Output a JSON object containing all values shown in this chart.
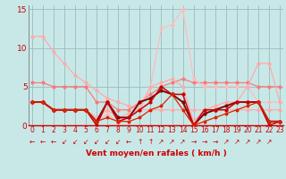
{
  "background_color": "#c8e8e8",
  "grid_color": "#99bbbb",
  "text_color": "#cc0000",
  "xlabel": "Vent moyen/en rafales ( km/h )",
  "xlim": [
    -0.3,
    23.3
  ],
  "ylim": [
    0,
    15.5
  ],
  "yticks": [
    0,
    5,
    10,
    15
  ],
  "xticks": [
    0,
    1,
    2,
    3,
    4,
    5,
    6,
    7,
    8,
    9,
    10,
    11,
    12,
    13,
    14,
    15,
    16,
    17,
    18,
    19,
    20,
    21,
    22,
    23
  ],
  "lines": [
    {
      "x": [
        0,
        1,
        2,
        3,
        4,
        5,
        6,
        7,
        8,
        9,
        10,
        11,
        12,
        13,
        14,
        15,
        16,
        17,
        18,
        19,
        20,
        21,
        22,
        23
      ],
      "y": [
        11.5,
        11.5,
        9.5,
        8,
        6.5,
        5.5,
        4.5,
        3.5,
        3,
        2.5,
        2,
        2,
        2,
        2,
        2,
        2,
        2,
        2,
        2,
        2,
        2,
        2,
        2,
        2
      ],
      "color": "#ffaaaa",
      "lw": 0.9,
      "marker": "o",
      "ms": 2.0,
      "zorder": 2
    },
    {
      "x": [
        0,
        1,
        2,
        3,
        4,
        5,
        6,
        7,
        8,
        9,
        10,
        11,
        12,
        13,
        14,
        15,
        16,
        17,
        18,
        19,
        20,
        21,
        22,
        23
      ],
      "y": [
        5.5,
        5.5,
        5,
        5,
        5,
        5,
        3,
        3,
        2,
        2,
        3,
        4,
        5,
        5.5,
        6,
        5.5,
        5.5,
        5.5,
        5.5,
        5.5,
        5.5,
        5,
        5,
        5
      ],
      "color": "#ff7777",
      "lw": 0.9,
      "marker": "o",
      "ms": 2.0,
      "zorder": 2
    },
    {
      "x": [
        0,
        1,
        2,
        3,
        4,
        5,
        6,
        7,
        8,
        9,
        10,
        11,
        12,
        13,
        14,
        15,
        16,
        17,
        18,
        19,
        20,
        21,
        22,
        23
      ],
      "y": [
        3,
        3,
        2,
        2,
        2,
        2,
        0.5,
        1.5,
        0.3,
        1,
        2.5,
        5,
        12.5,
        13,
        15,
        6,
        5,
        5,
        5,
        5,
        5,
        3,
        3,
        3
      ],
      "color": "#ffbbbb",
      "lw": 0.9,
      "marker": "o",
      "ms": 2.0,
      "zorder": 2
    },
    {
      "x": [
        0,
        1,
        2,
        3,
        4,
        5,
        6,
        7,
        8,
        9,
        10,
        11,
        12,
        13,
        14,
        15,
        16,
        17,
        18,
        19,
        20,
        21,
        22,
        23
      ],
      "y": [
        3,
        3,
        2,
        2,
        2,
        2,
        0.5,
        3,
        1,
        1,
        3,
        3.5,
        4.5,
        4,
        3,
        0,
        1.5,
        2,
        2.5,
        3,
        3,
        3,
        0.5,
        0.5
      ],
      "color": "#880000",
      "lw": 1.4,
      "marker": "o",
      "ms": 2.0,
      "zorder": 3
    },
    {
      "x": [
        0,
        1,
        2,
        3,
        4,
        5,
        6,
        7,
        8,
        9,
        10,
        11,
        12,
        13,
        14,
        15,
        16,
        17,
        18,
        19,
        20,
        21,
        22,
        23
      ],
      "y": [
        3,
        3,
        2,
        2,
        2,
        2,
        0,
        3,
        0.5,
        1,
        2,
        3,
        5,
        4,
        4,
        0,
        2,
        2,
        2,
        3,
        3,
        3,
        0,
        0.5
      ],
      "color": "#cc0000",
      "lw": 1.1,
      "marker": "o",
      "ms": 2.0,
      "zorder": 3
    },
    {
      "x": [
        0,
        1,
        2,
        3,
        4,
        5,
        6,
        7,
        8,
        9,
        10,
        11,
        12,
        13,
        14,
        15,
        16,
        17,
        18,
        19,
        20,
        21,
        22,
        23
      ],
      "y": [
        3,
        3,
        2,
        2,
        2,
        2,
        0.5,
        1,
        0.5,
        0.5,
        1,
        2,
        2.5,
        4,
        2,
        0,
        0.5,
        1,
        1.5,
        2,
        2.5,
        3,
        0.5,
        0.5
      ],
      "color": "#dd2200",
      "lw": 0.9,
      "marker": "o",
      "ms": 1.8,
      "zorder": 3
    },
    {
      "x": [
        0,
        1,
        2,
        3,
        4,
        5,
        6,
        7,
        8,
        9,
        10,
        11,
        12,
        13,
        14,
        15,
        16,
        17,
        18,
        19,
        20,
        21,
        22,
        23
      ],
      "y": [
        3,
        3,
        2,
        2,
        2,
        2,
        1,
        2,
        1,
        1.5,
        2,
        5,
        5.5,
        6,
        5,
        0.5,
        2,
        2.5,
        3,
        3,
        5,
        8,
        8,
        3
      ],
      "color": "#ffaaaa",
      "lw": 0.9,
      "marker": "o",
      "ms": 2.0,
      "zorder": 2
    }
  ],
  "arrows": [
    "←",
    "←",
    "←",
    "↙",
    "↙",
    "↙",
    "↙",
    "↙",
    "↙",
    "←",
    "↑",
    "↑",
    "↗",
    "↗",
    "↗",
    "→",
    "→",
    "→",
    "↗",
    "↗",
    "↗",
    "↗",
    "↗"
  ],
  "arrow_color": "#cc0000",
  "separator_color": "#cc0000"
}
